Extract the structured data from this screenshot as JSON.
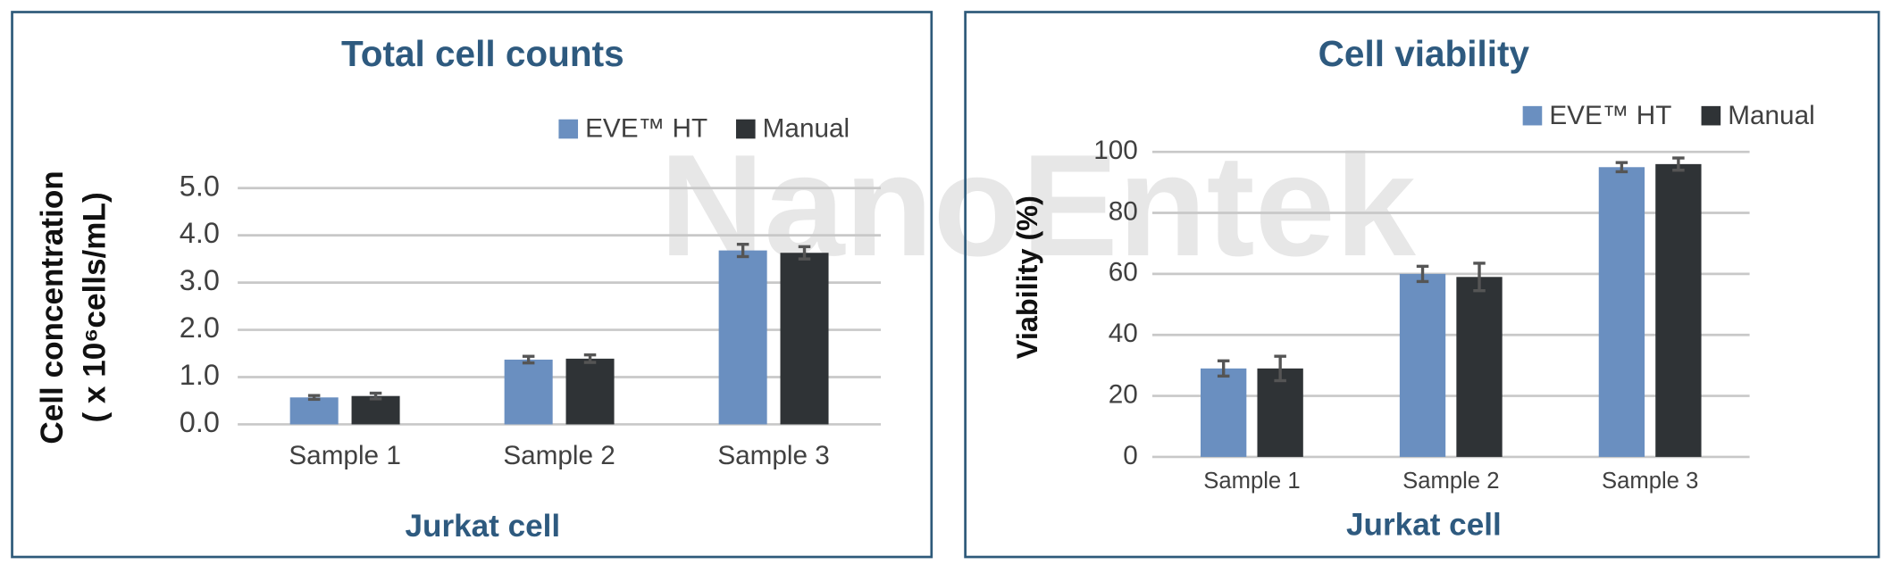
{
  "chart_data": [
    {
      "type": "bar",
      "title": "Total cell counts",
      "ylabel": [
        "Cell concentration",
        "( x 10⁶cells/mL)"
      ],
      "xlabel": "Jurkat cell",
      "categories": [
        "Sample 1",
        "Sample 2",
        "Sample 3"
      ],
      "series": [
        {
          "name": "EVE™ HT",
          "color": "#6a8fc0",
          "values": [
            0.57,
            1.37,
            3.68
          ],
          "errors": [
            0.04,
            0.07,
            0.13
          ]
        },
        {
          "name": "Manual",
          "color": "#2f3336",
          "values": [
            0.6,
            1.39,
            3.63
          ],
          "errors": [
            0.06,
            0.08,
            0.13
          ]
        }
      ],
      "ylim": [
        0,
        5
      ],
      "yticks": [
        {
          "value": 0,
          "label": "0.0"
        },
        {
          "value": 1,
          "label": "1.0"
        },
        {
          "value": 2,
          "label": "2.0"
        },
        {
          "value": 3,
          "label": "3.0"
        },
        {
          "value": 4,
          "label": "4.0"
        },
        {
          "value": 5,
          "label": "5.0"
        }
      ],
      "grid": true,
      "legend": "top-right",
      "watermark": "NanoEntek"
    },
    {
      "type": "bar",
      "title": "Cell viability",
      "ylabel": "Viability (%)",
      "xlabel": "Jurkat cell",
      "categories": [
        "Sample 1",
        "Sample 2",
        "Sample 3"
      ],
      "series": [
        {
          "name": "EVE™ HT",
          "color": "#6a8fc0",
          "values": [
            29,
            60,
            95
          ],
          "errors": [
            2.5,
            2.5,
            1.5
          ]
        },
        {
          "name": "Manual",
          "color": "#2f3336",
          "values": [
            29,
            59,
            96
          ],
          "errors": [
            4,
            4.5,
            2
          ]
        }
      ],
      "ylim": [
        0,
        100
      ],
      "yticks": [
        0,
        20,
        40,
        60,
        80,
        100
      ],
      "grid": true,
      "legend": "top-right"
    }
  ]
}
